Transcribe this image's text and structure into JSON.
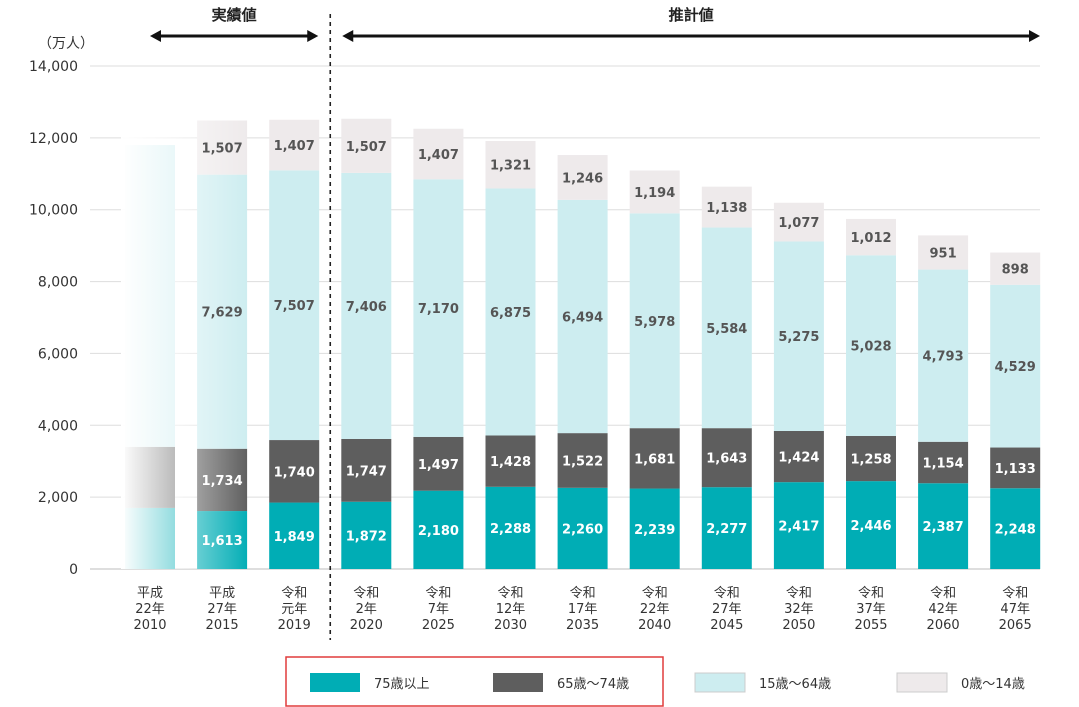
{
  "chart_data": {
    "type": "bar",
    "stacked": true,
    "ylabel": "（万人）",
    "ylim": [
      0,
      14000
    ],
    "yticks": [
      0,
      2000,
      4000,
      6000,
      8000,
      10000,
      12000,
      14000
    ],
    "ytick_labels": [
      "0",
      "2,000",
      "4,000",
      "6,000",
      "8,000",
      "10,000",
      "12,000",
      "14,000"
    ],
    "grid": true,
    "categories": [
      [
        "平成",
        "22年",
        "2010"
      ],
      [
        "平成",
        "27年",
        "2015"
      ],
      [
        "令和",
        "元年",
        "2019"
      ],
      [
        "令和",
        "2年",
        "2020"
      ],
      [
        "令和",
        "7年",
        "2025"
      ],
      [
        "令和",
        "12年",
        "2030"
      ],
      [
        "令和",
        "17年",
        "2035"
      ],
      [
        "令和",
        "22年",
        "2040"
      ],
      [
        "令和",
        "27年",
        "2045"
      ],
      [
        "令和",
        "32年",
        "2050"
      ],
      [
        "令和",
        "37年",
        "2055"
      ],
      [
        "令和",
        "42年",
        "2060"
      ],
      [
        "令和",
        "47年",
        "2065"
      ]
    ],
    "series": [
      {
        "name": "75歳以上",
        "color": "#00adb5",
        "values": [
          1700,
          1613,
          1849,
          1872,
          2180,
          2288,
          2260,
          2239,
          2277,
          2417,
          2446,
          2387,
          2248
        ],
        "labels": [
          "",
          "1,613",
          "1,849",
          "1,872",
          "2,180",
          "2,288",
          "2,260",
          "2,239",
          "2,277",
          "2,417",
          "2,446",
          "2,387",
          "2,248"
        ]
      },
      {
        "name": "65歳～74歳",
        "color": "#5e5e5e",
        "values": [
          1700,
          1734,
          1740,
          1747,
          1497,
          1428,
          1522,
          1681,
          1643,
          1424,
          1258,
          1154,
          1133
        ],
        "labels": [
          "",
          "1,734",
          "1,740",
          "1,747",
          "1,497",
          "1,428",
          "1,522",
          "1,681",
          "1,643",
          "1,424",
          "1,258",
          "1,154",
          "1,133"
        ]
      },
      {
        "name": "15歳～64歳",
        "color": "#cdedf0",
        "values": [
          8400,
          7629,
          7507,
          7406,
          7170,
          6875,
          6494,
          5978,
          5584,
          5275,
          5028,
          4793,
          4529
        ],
        "labels": [
          "",
          "7,629",
          "7,507",
          "7,406",
          "7,170",
          "6,875",
          "6,494",
          "5,978",
          "5,584",
          "5,275",
          "5,028",
          "4,793",
          "4,529"
        ]
      },
      {
        "name": "0歳～14歳",
        "color": "#eeeaeb",
        "values": [
          0,
          1507,
          1407,
          1507,
          1407,
          1321,
          1246,
          1194,
          1138,
          1077,
          1012,
          951,
          898
        ],
        "labels": [
          "",
          "1,507",
          "1,407",
          "1,507",
          "1,407",
          "1,321",
          "1,246",
          "1,194",
          "1,138",
          "1,077",
          "1,012",
          "951",
          "898"
        ]
      }
    ],
    "faded": [
      0,
      1
    ],
    "annotations": [
      {
        "text": "実績値",
        "from": 0,
        "to": 2
      },
      {
        "text": "推計値",
        "from": 3,
        "to": 12
      }
    ],
    "legend_position": "bottom-center"
  },
  "legend_border_color": "#e03c3c"
}
